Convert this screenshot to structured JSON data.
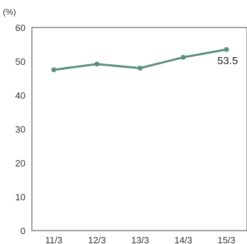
{
  "chart_data": {
    "type": "line",
    "unit_label": "(%)",
    "categories": [
      "11/3",
      "12/3",
      "13/3",
      "14/3",
      "15/3"
    ],
    "series": [
      {
        "values": [
          47.5,
          49.2,
          48.0,
          51.2,
          53.5
        ]
      }
    ],
    "y_ticks": [
      "0",
      "10",
      "20",
      "30",
      "40",
      "50",
      "60"
    ],
    "ylim": [
      0,
      60
    ],
    "grid": false,
    "annotation": {
      "category": "15/3",
      "text": "53.5"
    },
    "colors": {
      "line": "#5a8f7b",
      "axis": "#444444"
    }
  }
}
